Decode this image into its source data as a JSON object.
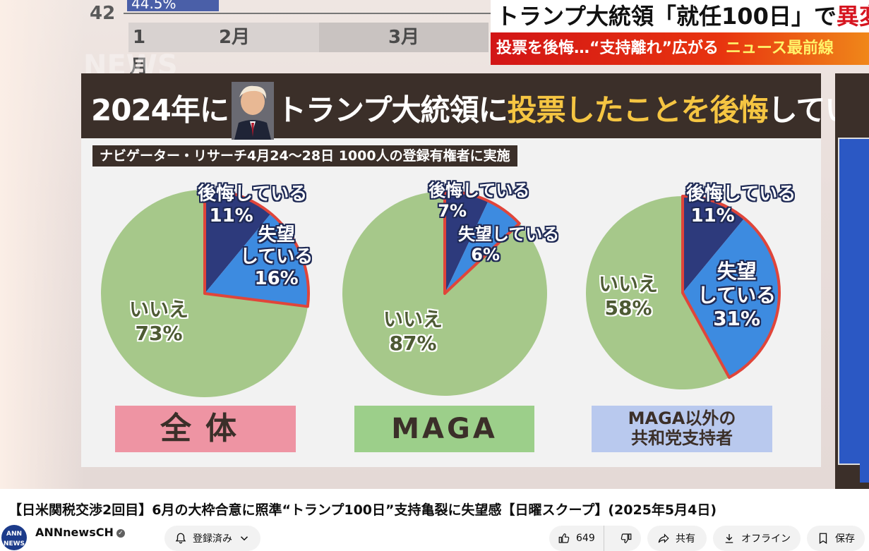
{
  "prev_chart": {
    "y_tick": "42",
    "badge": "44.5%",
    "months": [
      "1月",
      "2月",
      "3月"
    ]
  },
  "ticker": {
    "headline_pre": "トランプ大統領「就任100日」で",
    "headline_accent": "異変",
    "subhead": "投票を後悔…“支持離れ”広がる",
    "news_tag": "ニュース最前線"
  },
  "watermark": "NEWS",
  "panel": {
    "title_pre": "2024年に",
    "title_mid": "トランプ大統領に",
    "title_hl": "投票したことを後悔",
    "title_post": "しているか",
    "source": "ナビゲーター・リサーチ4月24〜28日 1000人の登録有権者に実施"
  },
  "chart_data": [
    {
      "type": "pie",
      "title": "全体",
      "slices": [
        {
          "label": "後悔している",
          "value": 11,
          "display": "11%"
        },
        {
          "label": "失望している",
          "value": 16,
          "display": "16%"
        },
        {
          "label": "いいえ",
          "value": 73,
          "display": "73%"
        }
      ]
    },
    {
      "type": "pie",
      "title": "MAGA",
      "slices": [
        {
          "label": "後悔している",
          "value": 7,
          "display": "7%"
        },
        {
          "label": "失望している",
          "value": 6,
          "display": "6%"
        },
        {
          "label": "いいえ",
          "value": 87,
          "display": "87%"
        }
      ]
    },
    {
      "type": "pie",
      "title": "MAGA以外の共和党支持者",
      "slices": [
        {
          "label": "後悔している",
          "value": 11,
          "display": "11%"
        },
        {
          "label": "失望している",
          "value": 31,
          "display": "31%"
        },
        {
          "label": "いいえ",
          "value": 58,
          "display": "58%"
        }
      ]
    }
  ],
  "labels": {
    "regret": "後悔している",
    "disappoint_1": "失望",
    "disappoint_2": "している",
    "no": "いいえ",
    "non_maga_line1": "MAGA以外の",
    "non_maga_line2": "共和党支持者"
  },
  "colors": {
    "regret": "#2d3a7c",
    "disappoint": "#3d8be0",
    "no": "#a6c88a",
    "outline": "#e0453a",
    "title_bar": "#3b2f29",
    "highlight": "#f5c542"
  },
  "video": {
    "title": "【日米関税交渉2回目】6月の大枠合意に照準“トランプ100日”支持亀裂に失望感【日曜スクープ】(2025年5月4日)",
    "channel": "ANNnewsCH",
    "avatar_text": "ANN NEWS",
    "subscribed_label": "登録済み",
    "likes": "649",
    "share": "共有",
    "offline": "オフライン",
    "save": "保存"
  }
}
